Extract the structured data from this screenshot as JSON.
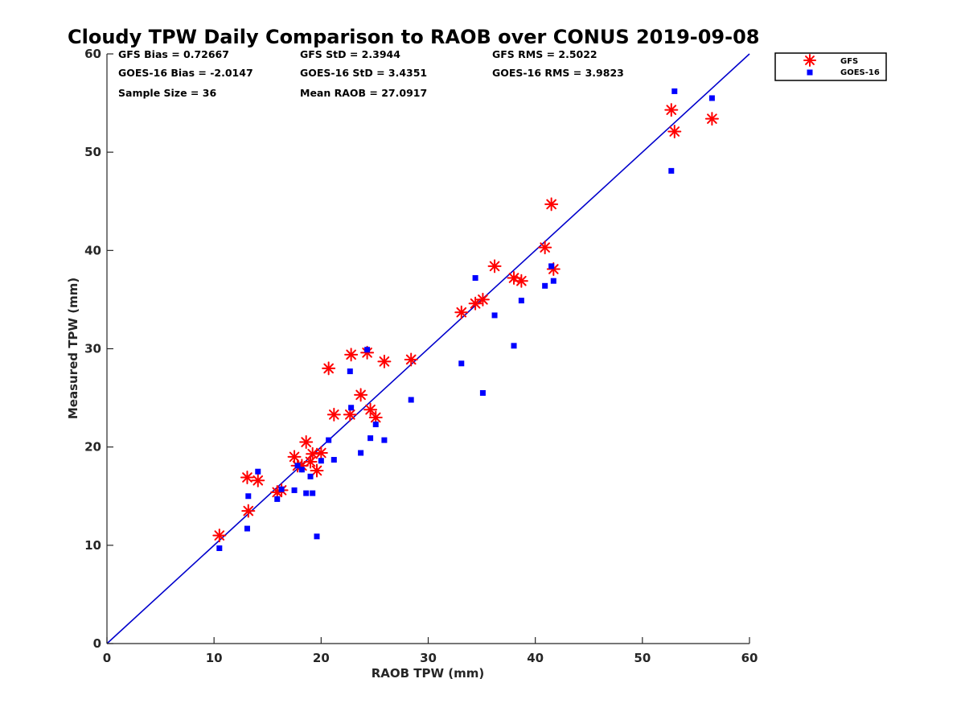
{
  "chart_data": {
    "type": "scatter",
    "title": "Cloudy TPW Daily Comparison to RAOB over CONUS 2019-09-08",
    "xlabel": "RAOB TPW (mm)",
    "ylabel": "Measured TPW (mm)",
    "xlim": [
      0,
      60
    ],
    "ylim": [
      0,
      60
    ],
    "x_ticks": [
      "0",
      "10",
      "20",
      "30",
      "40",
      "50",
      "60"
    ],
    "y_ticks": [
      "0",
      "10",
      "20",
      "30",
      "40",
      "50",
      "60"
    ],
    "grid": false,
    "legend_position": "top-right-outside",
    "reference_line": {
      "from": [
        0,
        0
      ],
      "to": [
        60,
        60
      ],
      "color": "#0000cc"
    },
    "stats": [
      "GFS Bias = 0.72667",
      "GFS StD = 2.3944",
      "GFS RMS = 2.5022",
      "GOES-16 Bias = -2.0147",
      "GOES-16 StD = 3.4351",
      "GOES-16 RMS = 3.9823",
      "Sample Size = 36",
      "Mean RAOB = 27.0917"
    ],
    "series": [
      {
        "name": "GFS",
        "marker": "asterisk",
        "color": "#ff0000",
        "points": [
          [
            10.5,
            11.0
          ],
          [
            13.1,
            16.9
          ],
          [
            13.2,
            13.5
          ],
          [
            14.1,
            16.6
          ],
          [
            15.9,
            15.4
          ],
          [
            16.3,
            15.6
          ],
          [
            17.5,
            19.0
          ],
          [
            17.8,
            18.1
          ],
          [
            18.2,
            18.1
          ],
          [
            18.6,
            20.5
          ],
          [
            19.0,
            18.5
          ],
          [
            19.2,
            19.3
          ],
          [
            19.6,
            17.6
          ],
          [
            20.0,
            19.4
          ],
          [
            20.7,
            28.0
          ],
          [
            21.2,
            23.3
          ],
          [
            22.7,
            23.3
          ],
          [
            22.8,
            29.4
          ],
          [
            23.7,
            25.3
          ],
          [
            24.3,
            29.6
          ],
          [
            24.6,
            23.8
          ],
          [
            25.1,
            23.0
          ],
          [
            25.9,
            28.7
          ],
          [
            28.4,
            28.9
          ],
          [
            33.1,
            33.7
          ],
          [
            34.4,
            34.6
          ],
          [
            35.1,
            35.0
          ],
          [
            36.2,
            38.4
          ],
          [
            38.0,
            37.2
          ],
          [
            38.7,
            36.9
          ],
          [
            40.9,
            40.3
          ],
          [
            41.5,
            44.7
          ],
          [
            41.7,
            38.1
          ],
          [
            52.7,
            54.3
          ],
          [
            53.0,
            52.1
          ],
          [
            56.5,
            53.4
          ]
        ]
      },
      {
        "name": "GOES-16",
        "marker": "square",
        "color": "#0000ff",
        "points": [
          [
            10.5,
            9.7
          ],
          [
            13.1,
            11.7
          ],
          [
            13.2,
            15.0
          ],
          [
            14.1,
            17.5
          ],
          [
            15.9,
            14.7
          ],
          [
            16.3,
            15.7
          ],
          [
            17.5,
            15.6
          ],
          [
            17.8,
            18.1
          ],
          [
            18.2,
            17.7
          ],
          [
            18.6,
            15.3
          ],
          [
            19.0,
            17.0
          ],
          [
            19.2,
            15.3
          ],
          [
            19.6,
            10.9
          ],
          [
            20.0,
            18.6
          ],
          [
            20.7,
            20.7
          ],
          [
            21.2,
            18.7
          ],
          [
            22.7,
            27.7
          ],
          [
            22.8,
            24.0
          ],
          [
            23.7,
            19.4
          ],
          [
            24.3,
            29.9
          ],
          [
            24.6,
            20.9
          ],
          [
            25.1,
            22.3
          ],
          [
            25.9,
            20.7
          ],
          [
            28.4,
            24.8
          ],
          [
            33.1,
            28.5
          ],
          [
            34.4,
            37.2
          ],
          [
            35.1,
            25.5
          ],
          [
            36.2,
            33.4
          ],
          [
            38.0,
            30.3
          ],
          [
            38.7,
            34.9
          ],
          [
            40.9,
            36.4
          ],
          [
            41.5,
            38.4
          ],
          [
            41.7,
            36.9
          ],
          [
            52.7,
            48.1
          ],
          [
            53.0,
            56.2
          ],
          [
            56.5,
            55.5
          ]
        ]
      }
    ]
  }
}
